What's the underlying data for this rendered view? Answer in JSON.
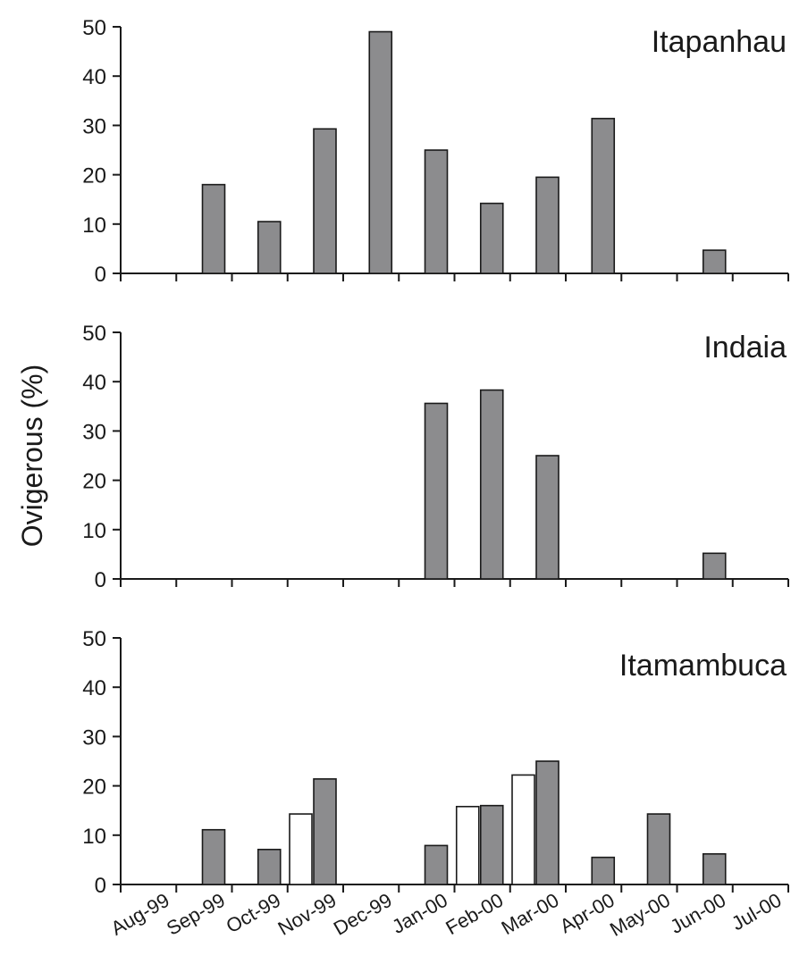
{
  "chart_data": [
    {
      "type": "bar",
      "title": "Itapanhau",
      "ylabel": "Ovigerous (%)",
      "ylim": [
        0,
        50
      ],
      "yticks": [
        0,
        10,
        20,
        30,
        40,
        50
      ],
      "categories": [
        "Aug-99",
        "Sep-99",
        "Oct-99",
        "Nov-99",
        "Dec-99",
        "Jan-00",
        "Feb-00",
        "Mar-00",
        "Apr-00",
        "May-00",
        "Jun-00",
        "Jul-00"
      ],
      "series": [
        {
          "fill": "#8c8c8e",
          "values": [
            null,
            18,
            10.5,
            29.3,
            49,
            25,
            14.2,
            19.5,
            31.4,
            null,
            4.7,
            null
          ]
        }
      ]
    },
    {
      "type": "bar",
      "title": "Indaia",
      "ylabel": "Ovigerous (%)",
      "ylim": [
        0,
        50
      ],
      "yticks": [
        0,
        10,
        20,
        30,
        40,
        50
      ],
      "categories": [
        "Aug-99",
        "Sep-99",
        "Oct-99",
        "Nov-99",
        "Dec-99",
        "Jan-00",
        "Feb-00",
        "Mar-00",
        "Apr-00",
        "May-00",
        "Jun-00",
        "Jul-00"
      ],
      "series": [
        {
          "fill": "#8c8c8e",
          "values": [
            null,
            null,
            null,
            null,
            null,
            35.6,
            38.3,
            25,
            null,
            null,
            5.2,
            null
          ]
        }
      ]
    },
    {
      "type": "bar",
      "title": "Itamambuca",
      "ylabel": "Ovigerous (%)",
      "ylim": [
        0,
        50
      ],
      "yticks": [
        0,
        10,
        20,
        30,
        40,
        50
      ],
      "categories": [
        "Aug-99",
        "Sep-99",
        "Oct-99",
        "Nov-99",
        "Dec-99",
        "Jan-00",
        "Feb-00",
        "Mar-00",
        "Apr-00",
        "May-00",
        "Jun-00",
        "Jul-00"
      ],
      "series": [
        {
          "fill": "#ffffff",
          "values": [
            null,
            null,
            null,
            14.3,
            null,
            null,
            15.8,
            22.2,
            null,
            null,
            null,
            null
          ]
        },
        {
          "fill": "#8c8c8e",
          "values": [
            null,
            11.1,
            7.1,
            21.4,
            null,
            7.9,
            16,
            25,
            5.5,
            14.3,
            6.2,
            null
          ]
        }
      ]
    }
  ]
}
